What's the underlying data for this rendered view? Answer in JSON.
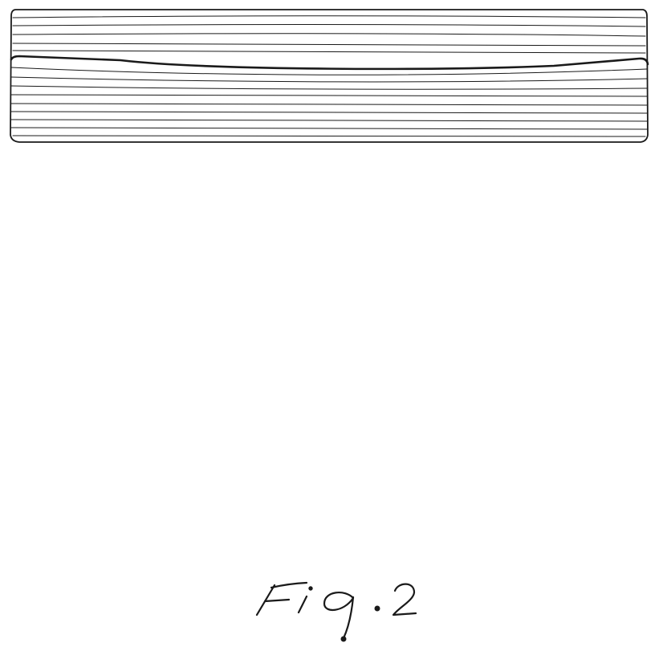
{
  "figure": {
    "label": "Fig.2"
  },
  "colors": {
    "line": "#1a1a1a",
    "background": "#ffffff"
  }
}
